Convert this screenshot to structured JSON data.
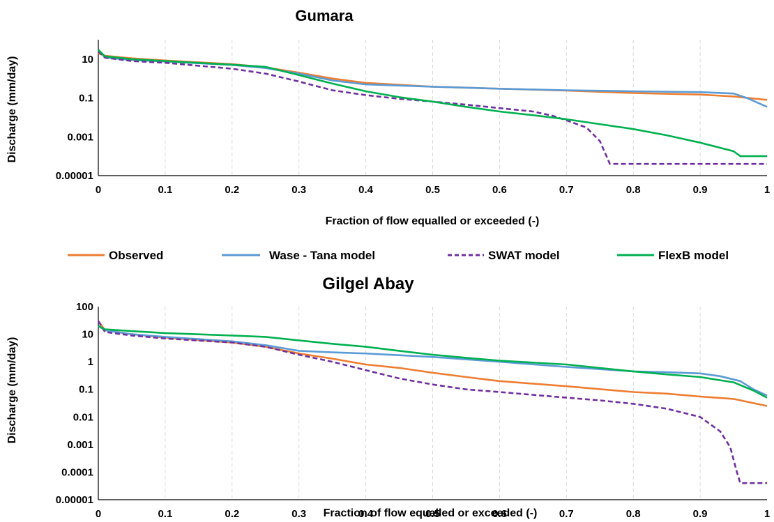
{
  "chart_data": [
    {
      "type": "line",
      "title": "Gumara",
      "xlabel": "Fraction of flow equalled or exceeded (-)",
      "ylabel": "Discharge (mm/day)",
      "y_scale": "log",
      "xlim": [
        0,
        1
      ],
      "ylim": [
        1e-05,
        100
      ],
      "x_ticks": [
        "0",
        "0.1",
        "0.2",
        "0.3",
        "0.4",
        "0.5",
        "0.6",
        "0.7",
        "0.8",
        "0.9",
        "1"
      ],
      "y_ticks": [
        "10",
        "0.1",
        "0.001",
        "0.00001"
      ],
      "grid": "vertical dashed",
      "series": [
        {
          "name": "Observed",
          "color": "#ED7D31",
          "dash": "solid",
          "points": [
            [
              0,
              20
            ],
            [
              0.01,
              15
            ],
            [
              0.05,
              11
            ],
            [
              0.1,
              8.5
            ],
            [
              0.2,
              5.5
            ],
            [
              0.25,
              3.8
            ],
            [
              0.3,
              2
            ],
            [
              0.35,
              1
            ],
            [
              0.4,
              0.6
            ],
            [
              0.5,
              0.38
            ],
            [
              0.6,
              0.3
            ],
            [
              0.7,
              0.24
            ],
            [
              0.8,
              0.18
            ],
            [
              0.9,
              0.15
            ],
            [
              0.95,
              0.12
            ],
            [
              1,
              0.08
            ]
          ]
        },
        {
          "name": "Wase - Tana model",
          "color": "#5B9BD5",
          "dash": "solid",
          "points": [
            [
              0,
              30
            ],
            [
              0.01,
              12
            ],
            [
              0.05,
              9
            ],
            [
              0.1,
              7.5
            ],
            [
              0.2,
              5
            ],
            [
              0.25,
              3.5
            ],
            [
              0.3,
              1.8
            ],
            [
              0.35,
              0.8
            ],
            [
              0.4,
              0.5
            ],
            [
              0.5,
              0.38
            ],
            [
              0.6,
              0.3
            ],
            [
              0.7,
              0.25
            ],
            [
              0.8,
              0.22
            ],
            [
              0.9,
              0.2
            ],
            [
              0.95,
              0.17
            ],
            [
              0.97,
              0.1
            ],
            [
              1,
              0.035
            ]
          ]
        },
        {
          "name": "SWAT model",
          "color": "#7030A0",
          "dash": "dashed",
          "points": [
            [
              0,
              25
            ],
            [
              0.01,
              12
            ],
            [
              0.05,
              8
            ],
            [
              0.1,
              6.5
            ],
            [
              0.2,
              3.2
            ],
            [
              0.25,
              1.8
            ],
            [
              0.3,
              0.7
            ],
            [
              0.35,
              0.25
            ],
            [
              0.4,
              0.14
            ],
            [
              0.45,
              0.09
            ],
            [
              0.5,
              0.065
            ],
            [
              0.55,
              0.045
            ],
            [
              0.6,
              0.03
            ],
            [
              0.65,
              0.02
            ],
            [
              0.68,
              0.012
            ],
            [
              0.7,
              0.007
            ],
            [
              0.73,
              0.003
            ],
            [
              0.75,
              0.0006
            ],
            [
              0.76,
              0.0001
            ],
            [
              0.765,
              4e-05
            ],
            [
              1,
              4e-05
            ]
          ]
        },
        {
          "name": "FlexB model",
          "color": "#00B050",
          "dash": "solid",
          "points": [
            [
              0,
              30
            ],
            [
              0.01,
              14
            ],
            [
              0.05,
              10
            ],
            [
              0.1,
              8
            ],
            [
              0.2,
              5.2
            ],
            [
              0.25,
              4
            ],
            [
              0.3,
              1.5
            ],
            [
              0.35,
              0.55
            ],
            [
              0.4,
              0.22
            ],
            [
              0.45,
              0.11
            ],
            [
              0.5,
              0.065
            ],
            [
              0.55,
              0.035
            ],
            [
              0.6,
              0.02
            ],
            [
              0.65,
              0.013
            ],
            [
              0.7,
              0.008
            ],
            [
              0.75,
              0.0045
            ],
            [
              0.8,
              0.0025
            ],
            [
              0.85,
              0.0012
            ],
            [
              0.9,
              0.0005
            ],
            [
              0.95,
              0.00018
            ],
            [
              0.96,
              0.0001
            ],
            [
              1,
              0.0001
            ]
          ]
        }
      ]
    },
    {
      "type": "line",
      "title": "Gilgel Abay",
      "xlabel": "Fraction of flow equalled or exceeded (-)",
      "ylabel": "Discharge (mm/day)",
      "y_scale": "log",
      "xlim": [
        0,
        1
      ],
      "ylim": [
        1e-05,
        100
      ],
      "x_ticks": [
        "0",
        "0.1",
        "0.2",
        "0.3",
        "0.4",
        "0.5",
        "0.6",
        "0.7",
        "0.8",
        "0.9",
        "1"
      ],
      "y_ticks": [
        "100",
        "10",
        "1",
        "0.1",
        "0.01",
        "0.001",
        "0.0001",
        "0.00001"
      ],
      "grid": "vertical dashed",
      "series": [
        {
          "name": "Observed",
          "color": "#ED7D31",
          "dash": "solid",
          "points": [
            [
              0,
              30
            ],
            [
              0.01,
              14
            ],
            [
              0.05,
              10
            ],
            [
              0.1,
              7.5
            ],
            [
              0.2,
              5
            ],
            [
              0.25,
              3.5
            ],
            [
              0.3,
              2
            ],
            [
              0.35,
              1.3
            ],
            [
              0.4,
              0.8
            ],
            [
              0.45,
              0.6
            ],
            [
              0.5,
              0.4
            ],
            [
              0.55,
              0.28
            ],
            [
              0.6,
              0.2
            ],
            [
              0.7,
              0.13
            ],
            [
              0.8,
              0.08
            ],
            [
              0.85,
              0.07
            ],
            [
              0.9,
              0.055
            ],
            [
              0.95,
              0.045
            ],
            [
              1,
              0.025
            ]
          ]
        },
        {
          "name": "Wase - Tana model",
          "color": "#5B9BD5",
          "dash": "solid",
          "points": [
            [
              0,
              20
            ],
            [
              0.01,
              14
            ],
            [
              0.05,
              10
            ],
            [
              0.1,
              8
            ],
            [
              0.2,
              5.5
            ],
            [
              0.25,
              4
            ],
            [
              0.3,
              2.5
            ],
            [
              0.35,
              2.2
            ],
            [
              0.4,
              2
            ],
            [
              0.5,
              1.5
            ],
            [
              0.6,
              1
            ],
            [
              0.7,
              0.65
            ],
            [
              0.8,
              0.45
            ],
            [
              0.85,
              0.42
            ],
            [
              0.9,
              0.38
            ],
            [
              0.93,
              0.3
            ],
            [
              0.96,
              0.2
            ],
            [
              0.98,
              0.1
            ],
            [
              1,
              0.06
            ]
          ]
        },
        {
          "name": "SWAT model",
          "color": "#7030A0",
          "dash": "dashed",
          "points": [
            [
              0,
              30
            ],
            [
              0.01,
              12
            ],
            [
              0.05,
              9
            ],
            [
              0.1,
              7
            ],
            [
              0.2,
              5
            ],
            [
              0.25,
              3.5
            ],
            [
              0.3,
              1.8
            ],
            [
              0.35,
              1
            ],
            [
              0.4,
              0.5
            ],
            [
              0.45,
              0.25
            ],
            [
              0.5,
              0.15
            ],
            [
              0.55,
              0.1
            ],
            [
              0.6,
              0.08
            ],
            [
              0.7,
              0.05
            ],
            [
              0.75,
              0.04
            ],
            [
              0.8,
              0.03
            ],
            [
              0.85,
              0.02
            ],
            [
              0.9,
              0.01
            ],
            [
              0.93,
              0.003
            ],
            [
              0.945,
              0.0008
            ],
            [
              0.955,
              0.0001
            ],
            [
              0.96,
              4e-05
            ],
            [
              1,
              4e-05
            ]
          ]
        },
        {
          "name": "FlexB model",
          "color": "#00B050",
          "dash": "solid",
          "points": [
            [
              0,
              20
            ],
            [
              0.01,
              15
            ],
            [
              0.05,
              13
            ],
            [
              0.1,
              11
            ],
            [
              0.2,
              9
            ],
            [
              0.25,
              8
            ],
            [
              0.3,
              6
            ],
            [
              0.35,
              4.5
            ],
            [
              0.4,
              3.5
            ],
            [
              0.45,
              2.5
            ],
            [
              0.5,
              1.8
            ],
            [
              0.55,
              1.4
            ],
            [
              0.6,
              1.1
            ],
            [
              0.7,
              0.8
            ],
            [
              0.8,
              0.45
            ],
            [
              0.85,
              0.35
            ],
            [
              0.9,
              0.28
            ],
            [
              0.95,
              0.18
            ],
            [
              0.98,
              0.09
            ],
            [
              1,
              0.05
            ]
          ]
        }
      ]
    }
  ],
  "legend": {
    "items": [
      {
        "label": "Observed",
        "color": "#ED7D31",
        "dash": "solid"
      },
      {
        "label": "Wase - Tana model",
        "color": "#5B9BD5",
        "dash": "solid"
      },
      {
        "label": "SWAT model",
        "color": "#7030A0",
        "dash": "dashed"
      },
      {
        "label": "FlexB model",
        "color": "#00B050",
        "dash": "solid"
      }
    ]
  }
}
